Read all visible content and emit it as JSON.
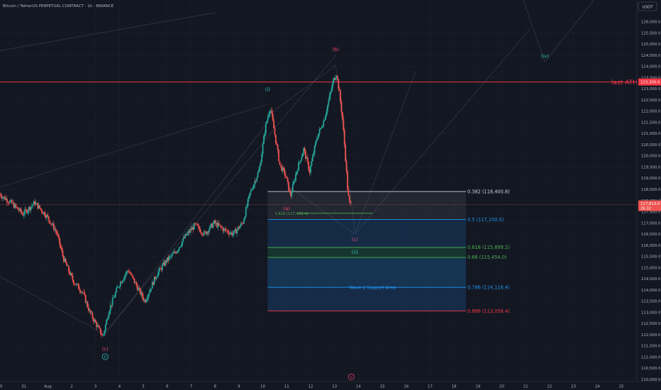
{
  "header": {
    "title": "Bitcoin / TetherUS PERPETUAL CONTRACT · 1h · BINANCE",
    "currency_button": "USDT"
  },
  "colors": {
    "background": "#131722",
    "bull": "#26a69a",
    "bear": "#ef5350",
    "wave_cyan": "#2ec4b6",
    "wave_red": "#f0456b",
    "fib_blue": "#2196f3",
    "fib_green": "#4caf50",
    "fib_red": "#f23645",
    "ath_red": "#f23645"
  },
  "chart_data": {
    "type": "candlestick",
    "ylim": [
      109750,
      126750
    ],
    "y_ticks": [
      110000,
      110500,
      111000,
      111500,
      112000,
      112500,
      113000,
      113500,
      114000,
      114500,
      115000,
      115500,
      116000,
      116500,
      117000,
      117500,
      118000,
      118500,
      119000,
      119500,
      120000,
      120500,
      121000,
      121500,
      122000,
      122500,
      123000,
      123500,
      124000,
      124500,
      125000,
      125500,
      126000
    ],
    "x_ticks": [
      "30",
      "31",
      "Aug",
      "2",
      "3",
      "4",
      "5",
      "6",
      "7",
      "8",
      "9",
      "10",
      "11",
      "12",
      "13",
      "14",
      "15",
      "16",
      "17",
      "18",
      "19",
      "20",
      "21",
      "22",
      "23",
      "24",
      "25"
    ],
    "price_path": [
      [
        0,
        118300
      ],
      [
        0.5,
        117900
      ],
      [
        1,
        117400
      ],
      [
        1.5,
        117900
      ],
      [
        2,
        117300
      ],
      [
        2.4,
        116600
      ],
      [
        2.7,
        115400
      ],
      [
        3.1,
        114400
      ],
      [
        3.5,
        113900
      ],
      [
        3.8,
        113000
      ],
      [
        4.1,
        112400
      ],
      [
        4.35,
        111900
      ],
      [
        4.6,
        113100
      ],
      [
        5,
        114200
      ],
      [
        5.4,
        114900
      ],
      [
        5.8,
        114100
      ],
      [
        6.1,
        113500
      ],
      [
        6.6,
        114700
      ],
      [
        7,
        115300
      ],
      [
        7.4,
        115700
      ],
      [
        7.8,
        116400
      ],
      [
        8.2,
        116900
      ],
      [
        8.6,
        116500
      ],
      [
        9,
        117000
      ],
      [
        9.4,
        116700
      ],
      [
        9.8,
        116500
      ],
      [
        10.2,
        117000
      ],
      [
        10.5,
        118300
      ],
      [
        10.9,
        119400
      ],
      [
        11.15,
        121300
      ],
      [
        11.35,
        122200
      ],
      [
        11.55,
        120900
      ],
      [
        11.75,
        119600
      ],
      [
        12,
        119100
      ],
      [
        12.2,
        118200
      ],
      [
        12.45,
        119300
      ],
      [
        12.75,
        120300
      ],
      [
        13,
        119300
      ],
      [
        13.3,
        120800
      ],
      [
        13.6,
        121600
      ],
      [
        13.85,
        122700
      ],
      [
        14,
        123400
      ],
      [
        14.12,
        123700
      ],
      [
        14.25,
        122800
      ],
      [
        14.38,
        121600
      ],
      [
        14.5,
        119900
      ],
      [
        14.6,
        118300
      ],
      [
        14.68,
        117813
      ]
    ],
    "current_price": 117813,
    "price_label": "117,813.0",
    "countdown": "26:32",
    "last_ath": {
      "value": 123300,
      "label": "last ATH",
      "price_tag": "123,300.0"
    },
    "fib_box": {
      "x_start": 11.2,
      "x_end": 19.5
    },
    "fib_levels": [
      {
        "ratio": 0.382,
        "price": 118400.8,
        "label": "0.382 (118,400.8)",
        "color": "#d1d4dc"
      },
      {
        "ratio": 0.5,
        "price": 117150.0,
        "label": "0.5 (117,150.0)",
        "color": "#2196f3"
      },
      {
        "ratio": 0.618,
        "price": 115899.2,
        "label": "0.618 (115,899.2)",
        "color": "#4caf50"
      },
      {
        "ratio": 0.66,
        "price": 115454.0,
        "label": "0.66 (115,454.0)",
        "color": "#4caf50"
      },
      {
        "ratio": 0.786,
        "price": 114118.4,
        "label": "0.786 (114,118.4)",
        "color": "#2196f3"
      },
      {
        "ratio": 0.886,
        "price": 113058.4,
        "label": "0.886 (113,058.4)",
        "color": "#f23645"
      }
    ],
    "extension": {
      "label": "1.618 (117,426.4)",
      "price": 117426.4,
      "x_start": 12.45,
      "x_end": 15.6
    },
    "support_area_label": "Wave 2 Support Area",
    "wave_labels": [
      {
        "text": "(c)",
        "x": 4.4,
        "price": 111350,
        "color": "#f0456b"
      },
      {
        "text": "ii",
        "x": 4.4,
        "price": 110950,
        "color": "#2ec4b6",
        "circled": true
      },
      {
        "text": "(i)",
        "x": 11.2,
        "price": 122950,
        "color": "#2ec4b6"
      },
      {
        "text": "(a)",
        "x": 12.0,
        "price": 117620,
        "color": "#f0456b"
      },
      {
        "text": "(b)",
        "x": 14.05,
        "price": 124750,
        "color": "#f0456b"
      },
      {
        "text": "(c)",
        "x": 14.85,
        "price": 116250,
        "color": "#f0456b"
      },
      {
        "text": "(ii)",
        "x": 14.85,
        "price": 115670,
        "color": "#2ec4b6"
      },
      {
        "text": "(iv)",
        "x": 22.8,
        "price": 124450,
        "color": "#2ec4b6"
      },
      {
        "text": "v",
        "x": 14.7,
        "price": 110050,
        "color": "#f0456b",
        "circled": true
      }
    ]
  }
}
